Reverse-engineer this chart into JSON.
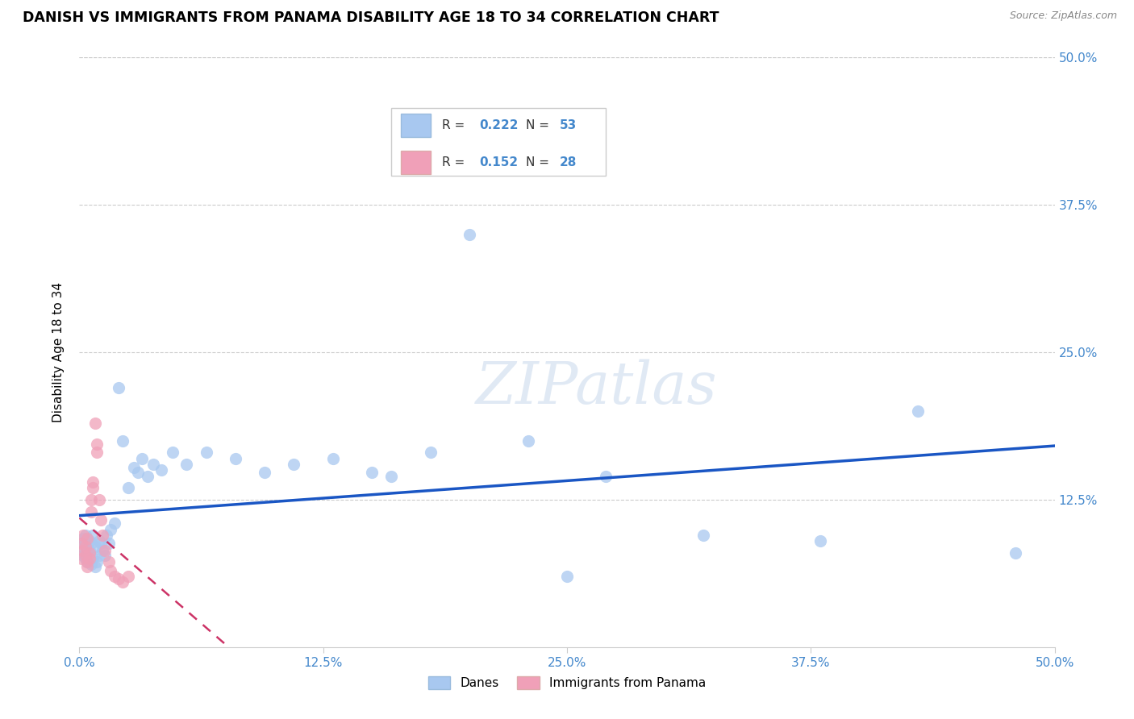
{
  "title": "DANISH VS IMMIGRANTS FROM PANAMA DISABILITY AGE 18 TO 34 CORRELATION CHART",
  "source": "Source: ZipAtlas.com",
  "ylabel": "Disability Age 18 to 34",
  "xlim": [
    0.0,
    0.5
  ],
  "ylim": [
    0.0,
    0.5
  ],
  "xtick_labels": [
    "0.0%",
    "",
    "12.5%",
    "",
    "25.0%",
    "",
    "37.5%",
    "",
    "50.0%"
  ],
  "xtick_vals": [
    0.0,
    0.0625,
    0.125,
    0.1875,
    0.25,
    0.3125,
    0.375,
    0.4375,
    0.5
  ],
  "ytick_right_labels": [
    "50.0%",
    "37.5%",
    "25.0%",
    "12.5%"
  ],
  "ytick_vals": [
    0.5,
    0.375,
    0.25,
    0.125
  ],
  "danes_R": 0.222,
  "danes_N": 53,
  "panama_R": 0.152,
  "panama_N": 28,
  "danes_color": "#a8c8f0",
  "danes_line_color": "#1a56c4",
  "panama_color": "#f0a0b8",
  "panama_line_color": "#cc3366",
  "watermark_text": "ZIPatlas",
  "danes_x": [
    0.001,
    0.002,
    0.002,
    0.003,
    0.003,
    0.003,
    0.004,
    0.004,
    0.005,
    0.005,
    0.006,
    0.006,
    0.007,
    0.007,
    0.008,
    0.008,
    0.009,
    0.01,
    0.01,
    0.011,
    0.012,
    0.013,
    0.014,
    0.015,
    0.016,
    0.018,
    0.02,
    0.022,
    0.025,
    0.028,
    0.03,
    0.032,
    0.035,
    0.038,
    0.042,
    0.048,
    0.055,
    0.065,
    0.08,
    0.095,
    0.11,
    0.13,
    0.15,
    0.18,
    0.2,
    0.23,
    0.27,
    0.32,
    0.38,
    0.43,
    0.48,
    0.16,
    0.25
  ],
  "danes_y": [
    0.085,
    0.092,
    0.078,
    0.075,
    0.088,
    0.095,
    0.08,
    0.072,
    0.09,
    0.082,
    0.07,
    0.088,
    0.076,
    0.095,
    0.068,
    0.085,
    0.072,
    0.09,
    0.078,
    0.088,
    0.082,
    0.078,
    0.095,
    0.088,
    0.1,
    0.105,
    0.22,
    0.175,
    0.135,
    0.152,
    0.148,
    0.16,
    0.145,
    0.155,
    0.15,
    0.165,
    0.155,
    0.165,
    0.16,
    0.148,
    0.155,
    0.16,
    0.148,
    0.165,
    0.35,
    0.175,
    0.145,
    0.095,
    0.09,
    0.2,
    0.08,
    0.145,
    0.06
  ],
  "panama_x": [
    0.001,
    0.001,
    0.002,
    0.002,
    0.003,
    0.003,
    0.004,
    0.004,
    0.004,
    0.005,
    0.005,
    0.006,
    0.006,
    0.007,
    0.007,
    0.008,
    0.009,
    0.009,
    0.01,
    0.011,
    0.012,
    0.013,
    0.015,
    0.016,
    0.018,
    0.02,
    0.022,
    0.025
  ],
  "panama_y": [
    0.088,
    0.075,
    0.095,
    0.082,
    0.078,
    0.085,
    0.072,
    0.092,
    0.068,
    0.08,
    0.075,
    0.115,
    0.125,
    0.14,
    0.135,
    0.19,
    0.172,
    0.165,
    0.125,
    0.108,
    0.095,
    0.082,
    0.072,
    0.065,
    0.06,
    0.058,
    0.055,
    0.06
  ]
}
